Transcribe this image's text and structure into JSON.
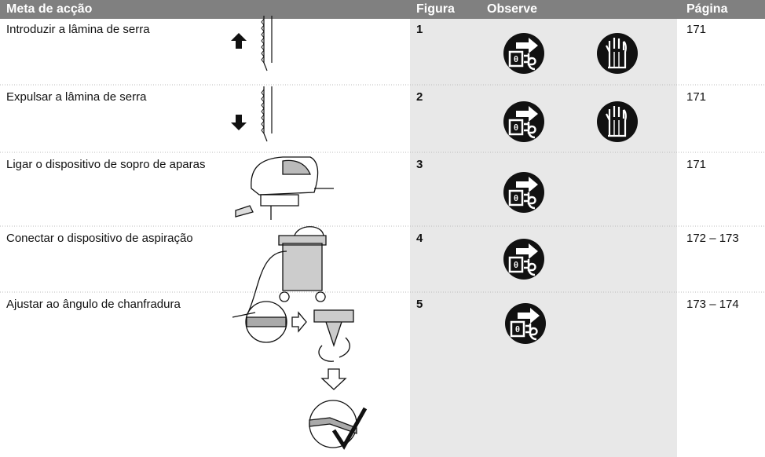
{
  "header": {
    "goal": "Meta de acção",
    "figure": "Figura",
    "observe": "Observe",
    "page": "Página"
  },
  "rows": [
    {
      "goal": "Introduzir a lâmina de serra",
      "figure": "1",
      "page": "171"
    },
    {
      "goal": "Expulsar a lâmina de serra",
      "figure": "2",
      "page": "171"
    },
    {
      "goal": "Ligar o dispositivo de sopro de aparas",
      "figure": "3",
      "page": "171"
    },
    {
      "goal": "Conectar o dispositivo de aspiração",
      "figure": "4",
      "page": "172 – 173"
    },
    {
      "goal": "Ajustar ao ângulo de chanfradura",
      "figure": "5",
      "page": "173 – 174"
    }
  ]
}
